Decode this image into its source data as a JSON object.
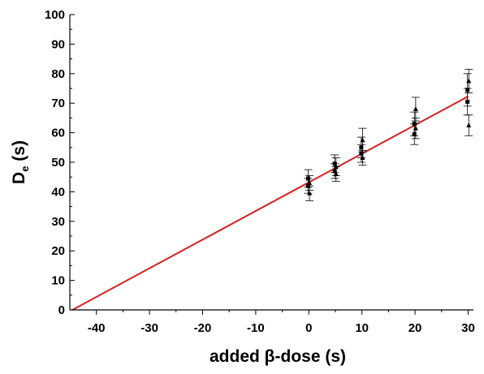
{
  "chart_data": {
    "type": "scatter",
    "title": "",
    "xlabel_main": "added ",
    "xlabel_symbol": "β",
    "xlabel_rest": "-dose (s)",
    "ylabel_main": "D",
    "ylabel_sub": "e",
    "ylabel_rest": " (s)",
    "xlim": [
      -45,
      31
    ],
    "ylim": [
      0,
      100
    ],
    "xticks": [
      -40,
      -30,
      -20,
      -10,
      0,
      10,
      20,
      30
    ],
    "yticks": [
      0,
      10,
      20,
      30,
      40,
      50,
      60,
      70,
      80,
      90,
      100
    ],
    "grid": false,
    "legend": "none",
    "series": [
      {
        "marker": "square",
        "points": [
          {
            "x": 0,
            "y": 44.5,
            "err": 3.0
          },
          {
            "x": 0,
            "y": 42.0,
            "err": 2.5
          },
          {
            "x": 5,
            "y": 49.5,
            "err": 3.0
          },
          {
            "x": 5,
            "y": 47.0,
            "err": 2.5
          },
          {
            "x": 10,
            "y": 55.0,
            "err": 3.5
          },
          {
            "x": 10,
            "y": 53.0,
            "err": 3.0
          },
          {
            "x": 20,
            "y": 63.0,
            "err": 4.0
          },
          {
            "x": 20,
            "y": 59.5,
            "err": 3.5
          },
          {
            "x": 30,
            "y": 74.5,
            "err": 5.5
          },
          {
            "x": 30,
            "y": 70.5,
            "err": 4.5
          }
        ]
      },
      {
        "marker": "triangle",
        "points": [
          {
            "x": 0,
            "y": 43.0,
            "err": 2.5
          },
          {
            "x": 0,
            "y": 39.5,
            "err": 2.5
          },
          {
            "x": 5,
            "y": 48.5,
            "err": 3.0
          },
          {
            "x": 5,
            "y": 46.0,
            "err": 2.5
          },
          {
            "x": 10,
            "y": 57.5,
            "err": 4.0
          },
          {
            "x": 10,
            "y": 51.5,
            "err": 2.5
          },
          {
            "x": 20,
            "y": 68.0,
            "err": 4.0
          },
          {
            "x": 20,
            "y": 61.5,
            "err": 3.5
          },
          {
            "x": 30,
            "y": 77.5,
            "err": 4.0
          },
          {
            "x": 30,
            "y": 62.5,
            "err": 3.5
          }
        ]
      }
    ],
    "fit_line": {
      "color": "#d62020",
      "x_start": -44.5,
      "x_end": 30,
      "slope": 0.97,
      "intercept": 43.2
    }
  }
}
